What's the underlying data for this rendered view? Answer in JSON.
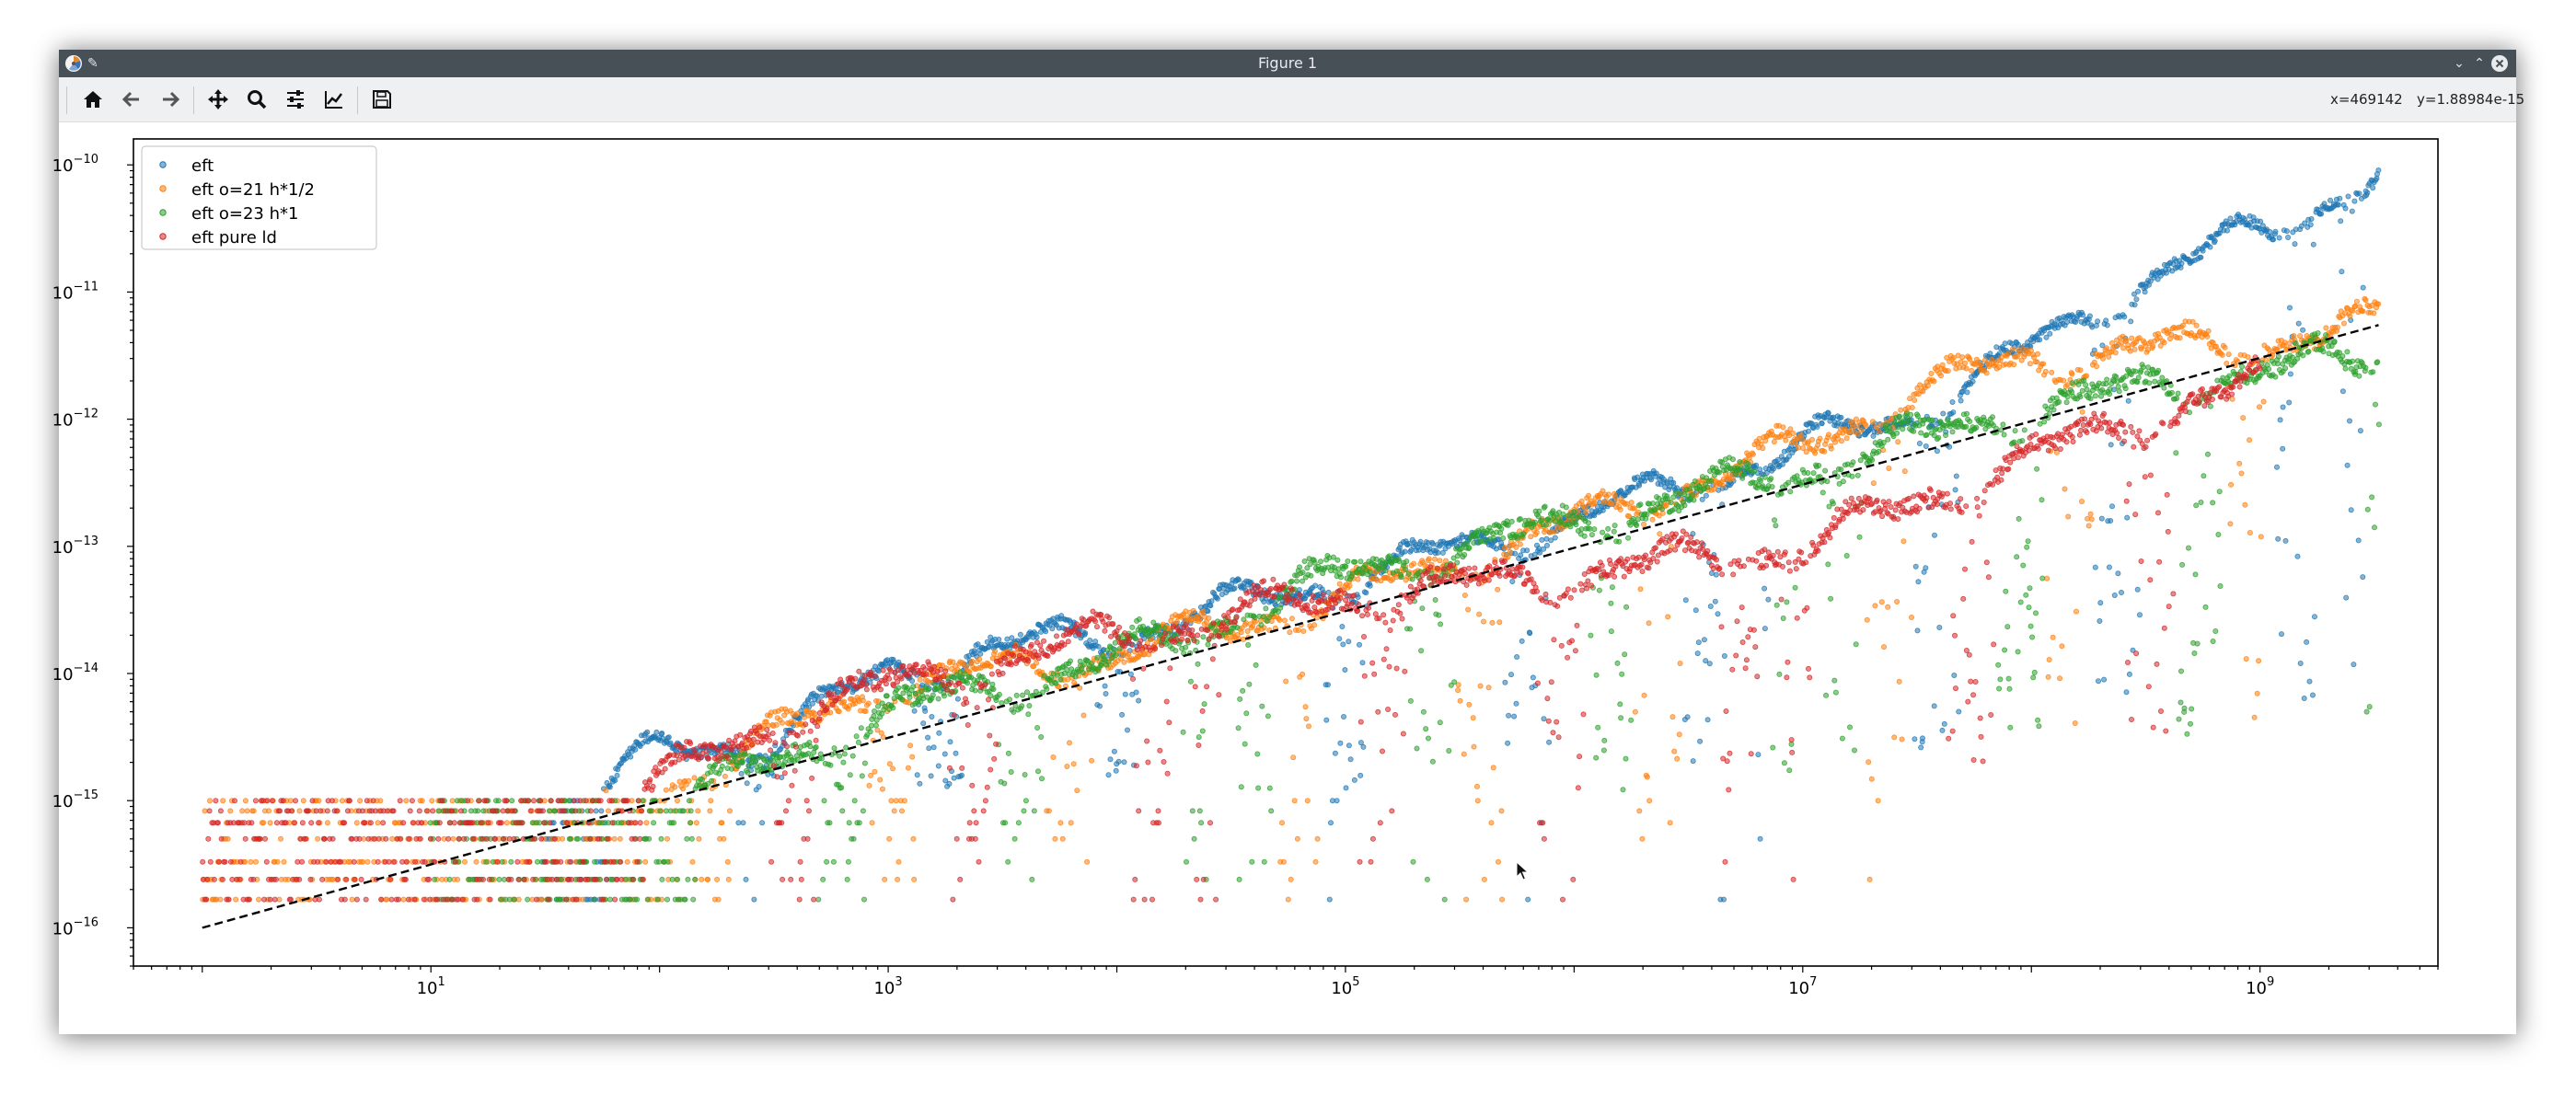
{
  "window": {
    "title": "Figure 1"
  },
  "toolbar": {
    "buttons": [
      {
        "name": "home-button",
        "icon": "home-icon"
      },
      {
        "name": "back-button",
        "icon": "arrow-left-icon"
      },
      {
        "name": "forward-button",
        "icon": "arrow-right-icon"
      },
      {
        "name": "pan-button",
        "icon": "move-icon"
      },
      {
        "name": "zoom-button",
        "icon": "search-icon"
      },
      {
        "name": "configure-subplots-button",
        "icon": "sliders-icon"
      },
      {
        "name": "edit-axis-button",
        "icon": "line-chart-icon"
      },
      {
        "name": "save-button",
        "icon": "floppy-icon"
      }
    ],
    "coord_x": "x=469142",
    "coord_y": "y=1.88984e-15"
  },
  "colors": {
    "series": [
      "#1f77b4",
      "#ff7f0e",
      "#2ca02c",
      "#d62728"
    ],
    "reference_line": "#000000",
    "titlebar": "#475057",
    "toolbar": "#eff0f1"
  },
  "chart_data": {
    "type": "scatter",
    "xscale": "log",
    "yscale": "log",
    "xlim": [
      0.5,
      6000000000
    ],
    "ylim": [
      5e-17,
      1.6e-10
    ],
    "x_ticks": [
      {
        "value": 10,
        "label": "10",
        "exp": "1"
      },
      {
        "value": 1000,
        "label": "10",
        "exp": "3"
      },
      {
        "value": 100000,
        "label": "10",
        "exp": "5"
      },
      {
        "value": 10000000,
        "label": "10",
        "exp": "7"
      },
      {
        "value": 1000000000,
        "label": "10",
        "exp": "9"
      }
    ],
    "y_ticks": [
      {
        "value": 1e-16,
        "label": "10",
        "exp": "−16"
      },
      {
        "value": 1e-15,
        "label": "10",
        "exp": "−15"
      },
      {
        "value": 1e-14,
        "label": "10",
        "exp": "−14"
      },
      {
        "value": 1e-13,
        "label": "10",
        "exp": "−13"
      },
      {
        "value": 1e-12,
        "label": "10",
        "exp": "−12"
      },
      {
        "value": 1e-11,
        "label": "10",
        "exp": "−11"
      },
      {
        "value": 1e-10,
        "label": "10",
        "exp": "−10"
      }
    ],
    "grid": false,
    "legend_position": "upper-left",
    "reference_line": {
      "style": "dashed",
      "points": [
        [
          1,
          1e-16
        ],
        [
          3300000000,
          5.5e-12
        ]
      ]
    },
    "series": [
      {
        "name": "eft",
        "trend": [
          [
            30,
            6e-16
          ],
          [
            100,
            2.4e-15
          ],
          [
            300,
            3e-15
          ],
          [
            1000,
            1e-14
          ],
          [
            3000,
            1.6e-14
          ],
          [
            10000,
            2e-14
          ],
          [
            100000,
            5.5e-14
          ],
          [
            1000000,
            1.6e-13
          ],
          [
            10000000,
            6e-13
          ],
          [
            30000000,
            1.1e-12
          ],
          [
            100000000,
            3.5e-12
          ],
          [
            300000000,
            1.2e-11
          ],
          [
            1000000000,
            3e-11
          ],
          [
            3300000000,
            8e-11
          ]
        ],
        "dip_floor": [
          [
            100,
            1e-15
          ],
          [
            10000,
            1.5e-15
          ],
          [
            1000000,
            5e-16
          ],
          [
            10000000,
            1e-15
          ],
          [
            100000000,
            5e-15
          ]
        ],
        "spread": 0.2
      },
      {
        "name": "eft o=21 h*1/2",
        "trend": [
          [
            1,
            2.2e-16
          ],
          [
            30,
            4e-16
          ],
          [
            100,
            1.2e-15
          ],
          [
            1000,
            8e-15
          ],
          [
            10000,
            1.4e-14
          ],
          [
            100000,
            4e-14
          ],
          [
            1000000,
            1.5e-13
          ],
          [
            10000000,
            6e-13
          ],
          [
            30000000,
            1.6e-12
          ],
          [
            100000000,
            3e-12
          ],
          [
            300000000,
            3.5e-12
          ],
          [
            1000000000,
            4e-12
          ],
          [
            3300000000,
            5.5e-12
          ]
        ],
        "dip_floor": [
          [
            100,
            1.6e-16
          ],
          [
            10000,
            2e-16
          ],
          [
            1000000,
            1.6e-16
          ],
          [
            100000000,
            2e-15
          ],
          [
            3000000000,
            5e-15
          ]
        ],
        "spread": 0.25
      },
      {
        "name": "eft o=23 h*1",
        "trend": [
          [
            10,
            2.5e-16
          ],
          [
            100,
            8e-16
          ],
          [
            1000,
            5e-15
          ],
          [
            10000,
            1.3e-14
          ],
          [
            100000,
            6e-14
          ],
          [
            1000000,
            1.5e-13
          ],
          [
            10000000,
            4e-13
          ],
          [
            100000000,
            1.2e-12
          ],
          [
            1000000000,
            2.5e-12
          ],
          [
            3300000000,
            3e-12
          ]
        ],
        "dip_floor": [
          [
            100,
            1.6e-16
          ],
          [
            10000,
            3e-16
          ],
          [
            1000000,
            1e-15
          ],
          [
            100000000,
            3e-15
          ],
          [
            1000000000,
            1e-15
          ]
        ],
        "spread": 0.3
      },
      {
        "name": "eft pure ld",
        "trend": [
          [
            1,
            3e-16
          ],
          [
            30,
            4e-16
          ],
          [
            300,
            4e-15
          ],
          [
            1000,
            8e-15
          ],
          [
            10000,
            2e-14
          ],
          [
            100000,
            4e-14
          ],
          [
            1000000,
            6e-14
          ],
          [
            10000000,
            1e-13
          ],
          [
            100000000,
            5e-13
          ],
          [
            300000000,
            1e-12
          ],
          [
            1000000000,
            2e-12
          ]
        ],
        "dip_floor": [
          [
            100,
            1.6e-16
          ],
          [
            10000,
            3e-16
          ],
          [
            1000000,
            5e-16
          ],
          [
            10000000,
            1e-15
          ],
          [
            100000000,
            2e-15
          ]
        ],
        "spread": 0.3
      }
    ]
  }
}
